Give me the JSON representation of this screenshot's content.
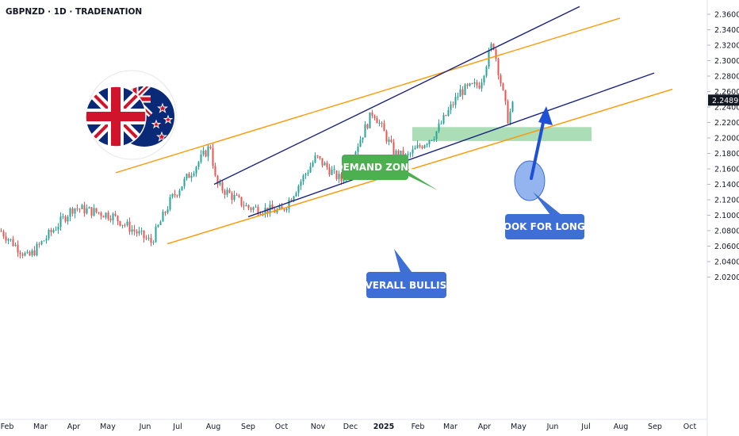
{
  "header": {
    "title": "GBPNZD · 1D · TRADENATION"
  },
  "price_badge": {
    "value": "2.24892",
    "color": "#131722"
  },
  "flags": {
    "left": "united-kingdom-flag",
    "right": "new-zealand-flag"
  },
  "colors": {
    "up": "#26a69a",
    "down": "#ef5350",
    "orange_channel": "#ff9800",
    "navy_channel": "#1a237e",
    "demand_zone": "#8fd19e",
    "callout_green": "#4caf50",
    "callout_blue": "#3d6fd6",
    "arrow_blue": "#1e50d6"
  },
  "chart_data": {
    "type": "candlestick",
    "symbol": "GBPNZD",
    "timeframe": "1D",
    "broker": "TRADENATION",
    "ylim": [
      2.01,
      2.365
    ],
    "y_ticks": [
      "2.36000",
      "2.34000",
      "2.32000",
      "2.30000",
      "2.28000",
      "2.26000",
      "2.24000",
      "2.22000",
      "2.20000",
      "2.18000",
      "2.16000",
      "2.14000",
      "2.12000",
      "2.10000",
      "2.08000",
      "2.06000",
      "2.04000",
      "2.02000"
    ],
    "x_ticks": [
      "Feb",
      "Mar",
      "Apr",
      "May",
      "Jun",
      "Jul",
      "Aug",
      "Sep",
      "Oct",
      "Nov",
      "Dec",
      "2025",
      "Feb",
      "Mar",
      "Apr",
      "May",
      "Jun",
      "Jul",
      "Aug",
      "Sep",
      "Oct"
    ],
    "price_path": [
      [
        "Feb",
        2.08
      ],
      [
        "Mar",
        2.045
      ],
      [
        "Apr",
        2.11
      ],
      [
        "May",
        2.1
      ],
      [
        "Jun",
        2.065
      ],
      [
        "Jul",
        2.12
      ],
      [
        "Aug",
        2.19
      ],
      [
        "Aug",
        2.14
      ],
      [
        "Sep",
        2.11
      ],
      [
        "Oct",
        2.105
      ],
      [
        "Nov",
        2.175
      ],
      [
        "Dec",
        2.145
      ],
      [
        "2025",
        2.235
      ],
      [
        "2025",
        2.18
      ],
      [
        "Feb",
        2.175
      ],
      [
        "Feb",
        2.205
      ],
      [
        "Mar",
        2.26
      ],
      [
        "Apr",
        2.27
      ],
      [
        "Apr",
        2.325
      ],
      [
        "May",
        2.225
      ],
      [
        "May",
        2.249
      ]
    ],
    "last_price": 2.24892,
    "demand_zone": {
      "from": 2.196,
      "to": 2.214
    },
    "channels": [
      {
        "name": "orange-channel-lower",
        "points": [
          [
            "Jun",
            2.063
          ],
          [
            "Sep",
            2.263
          ]
        ]
      },
      {
        "name": "orange-channel-upper",
        "points": [
          [
            "May",
            2.155
          ],
          [
            "Aug",
            2.355
          ]
        ]
      },
      {
        "name": "navy-channel-lower",
        "points": [
          [
            "Sep",
            2.098
          ],
          [
            "Aug",
            2.284
          ]
        ]
      },
      {
        "name": "navy-channel-upper",
        "points": [
          [
            "Aug",
            2.14
          ],
          [
            "Jul",
            2.37
          ]
        ]
      }
    ],
    "annotations": [
      {
        "id": "demand",
        "text": "DEMAND ZONE"
      },
      {
        "id": "longs",
        "text": "LOOK FOR LONGS"
      },
      {
        "id": "bullish",
        "text": "OVERALL BULLISH"
      }
    ]
  }
}
